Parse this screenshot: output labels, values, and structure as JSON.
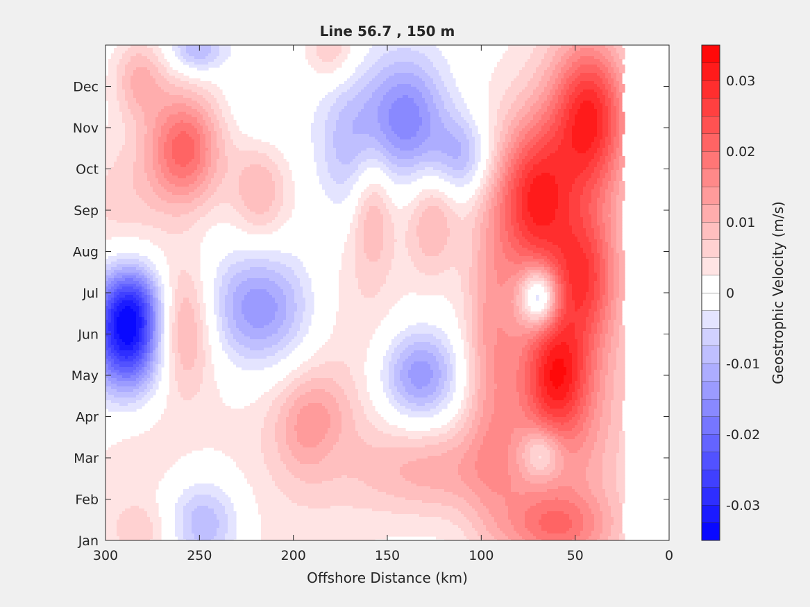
{
  "chart_data": {
    "type": "heatmap",
    "title": "Line 56.7 , 150 m",
    "xlabel": "Offshore Distance (km)",
    "ylabel": "",
    "x_reversed": true,
    "xlim": [
      300,
      0
    ],
    "xticks": [
      300,
      250,
      200,
      150,
      100,
      50,
      0
    ],
    "ylim": [
      1,
      13
    ],
    "yticks": [
      {
        "month": 1,
        "label": "Jan"
      },
      {
        "month": 2,
        "label": "Feb"
      },
      {
        "month": 3,
        "label": "Mar"
      },
      {
        "month": 4,
        "label": "Apr"
      },
      {
        "month": 5,
        "label": "May"
      },
      {
        "month": 6,
        "label": "Jun"
      },
      {
        "month": 7,
        "label": "Jul"
      },
      {
        "month": 8,
        "label": "Aug"
      },
      {
        "month": 9,
        "label": "Sep"
      },
      {
        "month": 10,
        "label": "Oct"
      },
      {
        "month": 11,
        "label": "Nov"
      },
      {
        "month": 12,
        "label": "Dec"
      }
    ],
    "data_extent_km": [
      25,
      300
    ],
    "colorbar": {
      "label": "Geostrophic Velocity (m/s)",
      "limits": [
        -0.035,
        0.035
      ],
      "step": 0.0025,
      "ticks": [
        {
          "value": 0.03,
          "label": "0.03"
        },
        {
          "value": 0.02,
          "label": "0.02"
        },
        {
          "value": 0.01,
          "label": "0.01"
        },
        {
          "value": 0,
          "label": "0"
        },
        {
          "value": -0.01,
          "label": "-0.01"
        },
        {
          "value": -0.02,
          "label": "-0.02"
        },
        {
          "value": -0.03,
          "label": "-0.03"
        }
      ],
      "neg_color": "#0000ff",
      "pos_color": "#ff0000",
      "zero_color": "#ffffff"
    },
    "features": [
      {
        "x": 288,
        "month": 6.0,
        "sx": 14,
        "sy": 1.0,
        "v": -0.034
      },
      {
        "x": 285,
        "month": 6.9,
        "sx": 12,
        "sy": 0.6,
        "v": -0.008
      },
      {
        "x": 218,
        "month": 6.6,
        "sx": 20,
        "sy": 1.0,
        "v": -0.016
      },
      {
        "x": 133,
        "month": 5.0,
        "sx": 15,
        "sy": 0.8,
        "v": -0.016
      },
      {
        "x": 140,
        "month": 11.2,
        "sx": 15,
        "sy": 1.1,
        "v": -0.017
      },
      {
        "x": 110,
        "month": 10.3,
        "sx": 12,
        "sy": 0.7,
        "v": -0.011
      },
      {
        "x": 170,
        "month": 10.5,
        "sx": 13,
        "sy": 1.3,
        "v": -0.01
      },
      {
        "x": 248,
        "month": 1.4,
        "sx": 15,
        "sy": 0.8,
        "v": -0.013
      },
      {
        "x": 251,
        "month": 12.9,
        "sx": 10,
        "sy": 0.4,
        "v": -0.011
      },
      {
        "x": 215,
        "month": 11.5,
        "sx": 12,
        "sy": 1.0,
        "v": -0.003
      },
      {
        "x": 68,
        "month": 3.1,
        "sx": 8,
        "sy": 0.45,
        "v": -0.012
      },
      {
        "x": 180,
        "month": 3.2,
        "sx": 9,
        "sy": 0.5,
        "v": -0.002
      },
      {
        "x": 258,
        "month": 10.5,
        "sx": 14,
        "sy": 1.0,
        "v": 0.021
      },
      {
        "x": 282,
        "month": 12.2,
        "sx": 10,
        "sy": 0.7,
        "v": 0.01
      },
      {
        "x": 292,
        "month": 9.2,
        "sx": 18,
        "sy": 1.2,
        "v": 0.006
      },
      {
        "x": 260,
        "month": 6.2,
        "sx": 12,
        "sy": 1.1,
        "v": 0.014
      },
      {
        "x": 72,
        "month": 9.3,
        "sx": 14,
        "sy": 1.3,
        "v": 0.022
      },
      {
        "x": 42,
        "month": 11.3,
        "sx": 14,
        "sy": 1.3,
        "v": 0.024
      },
      {
        "x": 45,
        "month": 7.4,
        "sx": 12,
        "sy": 1.1,
        "v": 0.015
      },
      {
        "x": 60,
        "month": 5.0,
        "sx": 12,
        "sy": 1.0,
        "v": 0.018
      },
      {
        "x": 52,
        "month": 8.8,
        "sx": 26,
        "sy": 3.2,
        "v": 0.01
      },
      {
        "x": 60,
        "month": 3.5,
        "sx": 28,
        "sy": 2.5,
        "v": 0.012
      },
      {
        "x": 95,
        "month": 6.0,
        "sx": 10,
        "sy": 2.8,
        "v": 0.009
      },
      {
        "x": 60,
        "month": 1.3,
        "sx": 22,
        "sy": 0.6,
        "v": 0.012
      },
      {
        "x": 125,
        "month": 2.7,
        "sx": 30,
        "sy": 0.8,
        "v": 0.01
      },
      {
        "x": 190,
        "month": 3.8,
        "sx": 14,
        "sy": 0.9,
        "v": 0.011
      },
      {
        "x": 218,
        "month": 9.5,
        "sx": 11,
        "sy": 0.9,
        "v": 0.01
      },
      {
        "x": 158,
        "month": 9.1,
        "sx": 8,
        "sy": 1.1,
        "v": 0.01
      },
      {
        "x": 126,
        "month": 8.8,
        "sx": 10,
        "sy": 1.0,
        "v": 0.01
      },
      {
        "x": 180,
        "month": 12.9,
        "sx": 10,
        "sy": 0.6,
        "v": 0.008
      },
      {
        "x": 280,
        "month": 1.2,
        "sx": 14,
        "sy": 0.5,
        "v": 0.005
      },
      {
        "x": 285,
        "month": 3.0,
        "sx": 18,
        "sy": 1.3,
        "v": 0.003
      },
      {
        "x": 220,
        "month": 1.5,
        "sx": 45,
        "sy": 3.5,
        "v": 0.004
      },
      {
        "x": 165,
        "month": 6.5,
        "sx": 22,
        "sy": 2.6,
        "v": 0.004
      },
      {
        "x": 69,
        "month": 6.9,
        "sx": 7,
        "sy": 0.5,
        "v": -0.022
      }
    ]
  }
}
